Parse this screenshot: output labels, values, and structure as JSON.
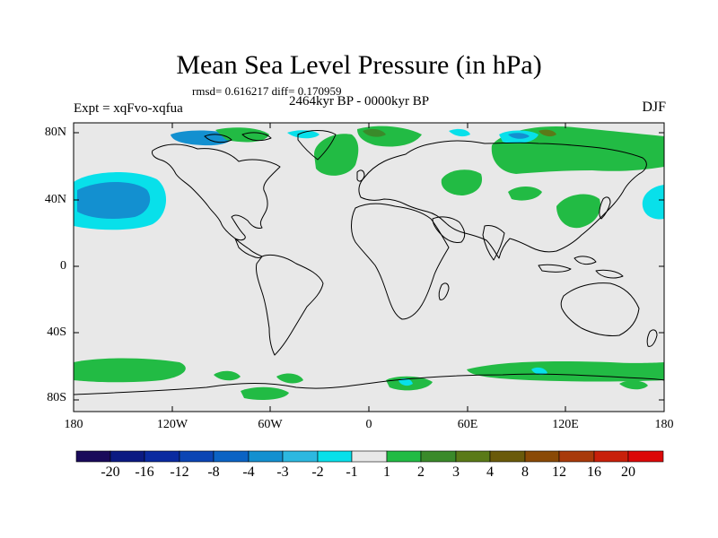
{
  "title": "Mean Sea Level Pressure (in hPa)",
  "stats": "rmsd= 0.616217 diff= 0.170959",
  "period": "2464kyr BP - 0000kyr BP",
  "experiment": "Expt = xqFvo-xqfua",
  "season": "DJF",
  "lat_labels": [
    "80N",
    "40N",
    "0",
    "40S",
    "80S"
  ],
  "lon_labels": [
    "180",
    "120W",
    "60W",
    "0",
    "60E",
    "120E",
    "180"
  ],
  "colorbar": {
    "labels": [
      "-20",
      "-16",
      "-12",
      "-8",
      "-4",
      "-3",
      "-2",
      "-1",
      "1",
      "2",
      "3",
      "4",
      "8",
      "12",
      "16",
      "20"
    ],
    "colors": [
      "#1a0a5a",
      "#0b1a82",
      "#0a2aa0",
      "#0b45b4",
      "#0b63c4",
      "#1390d0",
      "#2cb8e0",
      "#08e0ea",
      "#e8e8e8",
      "#22bb44",
      "#3a8a2a",
      "#5a7a18",
      "#6a5a0a",
      "#8a4a06",
      "#a83a0a",
      "#c8200a",
      "#dc0808"
    ]
  },
  "colors": {
    "background_field": "#e8e8e8",
    "positive_small": "#22bb44",
    "positive_medium": "#3a8a2a",
    "negative_small": "#08e0ea",
    "negative_medium": "#1390d0"
  }
}
